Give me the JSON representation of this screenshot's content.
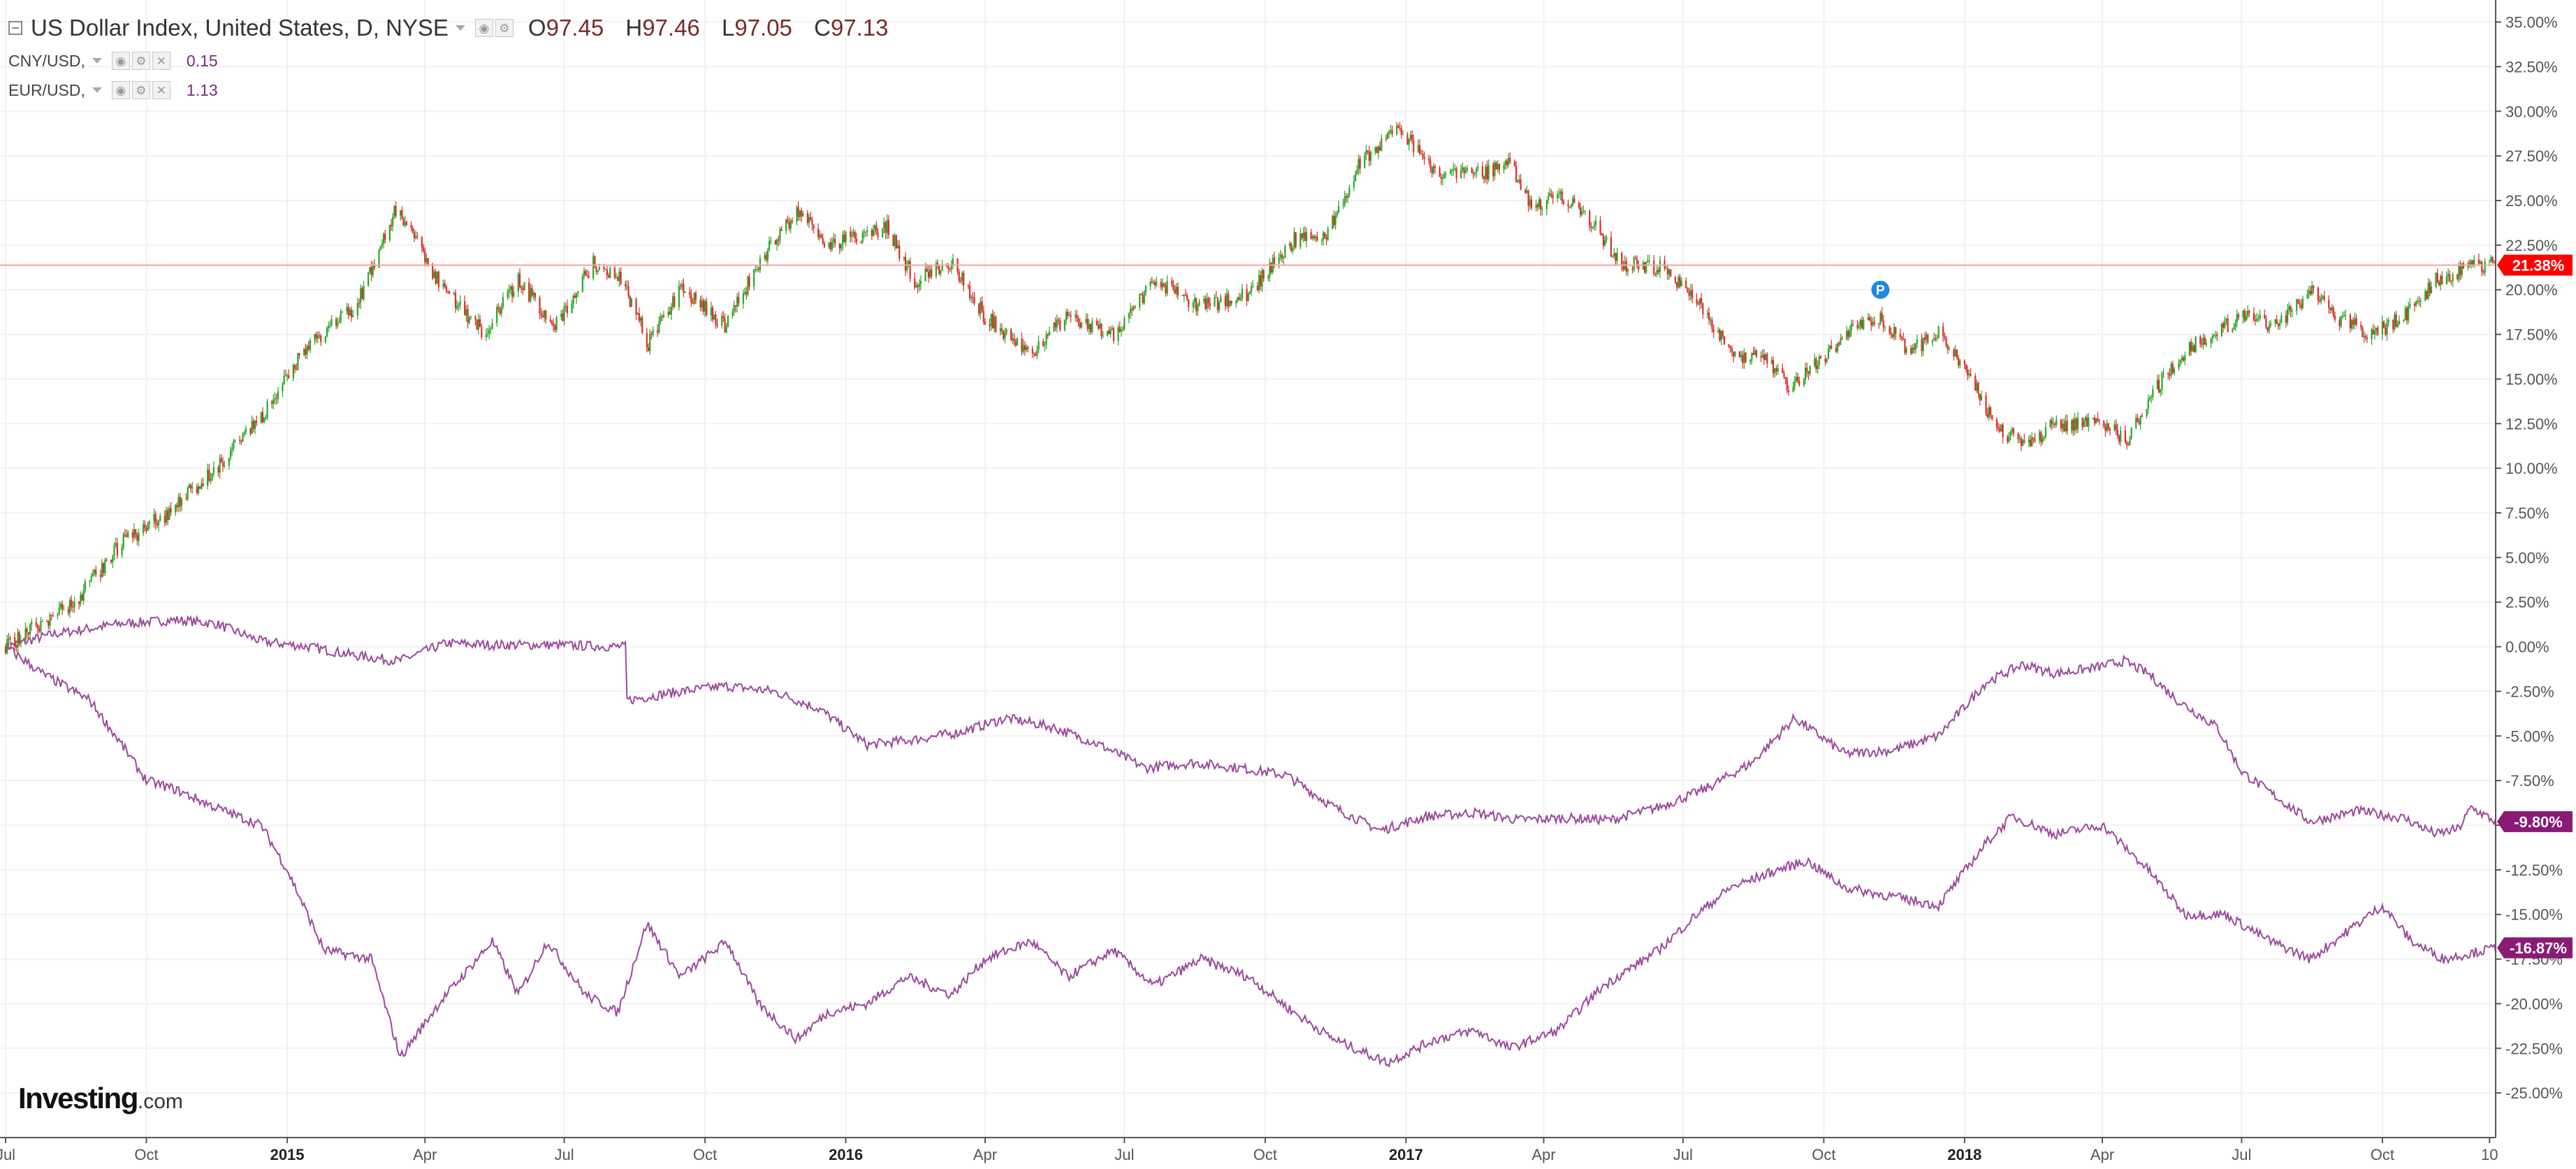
{
  "header": {
    "main_title": "US Dollar Index, United States, D, NYSE",
    "ohlc": [
      {
        "k": "O",
        "v": "97.45"
      },
      {
        "k": "H",
        "v": "97.46"
      },
      {
        "k": "L",
        "v": "97.05"
      },
      {
        "k": "C",
        "v": "97.13"
      }
    ],
    "comparisons": [
      {
        "label": "CNY/USD,",
        "value": "0.15"
      },
      {
        "label": "EUR/USD,",
        "value": "1.13"
      }
    ]
  },
  "logo": {
    "brand": "Investing",
    "suffix": ".com"
  },
  "colors": {
    "up": "#26a826",
    "down": "#e02b2b",
    "compare_line": "#9b4a9d",
    "current_line": "#f4a3a3",
    "current_badge": "#ff0000",
    "compare_badge": "#8a1a74",
    "grid": "#f2f2f2",
    "marker": "#1e88e5"
  },
  "chart_data": {
    "type": "line",
    "style": "candlestick-main-with-comparison-lines",
    "y_unit": "%",
    "ylim": [
      -27.5,
      36
    ],
    "y_ticks": [
      "35.00%",
      "32.50%",
      "30.00%",
      "27.50%",
      "25.00%",
      "22.50%",
      "20.00%",
      "17.50%",
      "15.00%",
      "12.50%",
      "10.00%",
      "7.50%",
      "5.00%",
      "2.50%",
      "0.00%",
      "-2.50%",
      "-5.00%",
      "-7.50%",
      "-10.00%",
      "-12.50%",
      "-15.00%",
      "-17.50%",
      "-20.00%",
      "-22.50%",
      "-25.00%"
    ],
    "x_ticks": [
      {
        "label": "Jul",
        "date": "2014-07-01",
        "bold": false
      },
      {
        "label": "Oct",
        "date": "2014-10-01",
        "bold": false
      },
      {
        "label": "2015",
        "date": "2015-01-01",
        "bold": true
      },
      {
        "label": "Apr",
        "date": "2015-04-01",
        "bold": false
      },
      {
        "label": "Jul",
        "date": "2015-07-01",
        "bold": false
      },
      {
        "label": "Oct",
        "date": "2015-10-01",
        "bold": false
      },
      {
        "label": "2016",
        "date": "2016-01-01",
        "bold": true
      },
      {
        "label": "Apr",
        "date": "2016-04-01",
        "bold": false
      },
      {
        "label": "Jul",
        "date": "2016-07-01",
        "bold": false
      },
      {
        "label": "Oct",
        "date": "2016-10-01",
        "bold": false
      },
      {
        "label": "2017",
        "date": "2017-01-01",
        "bold": true
      },
      {
        "label": "Apr",
        "date": "2017-04-01",
        "bold": false
      },
      {
        "label": "Jul",
        "date": "2017-07-01",
        "bold": false
      },
      {
        "label": "Oct",
        "date": "2017-10-01",
        "bold": false
      },
      {
        "label": "2018",
        "date": "2018-01-01",
        "bold": true
      },
      {
        "label": "Apr",
        "date": "2018-04-01",
        "bold": false
      },
      {
        "label": "Jul",
        "date": "2018-07-01",
        "bold": false
      },
      {
        "label": "Oct",
        "date": "2018-10-01",
        "bold": false
      },
      {
        "label": "10",
        "date": "2018-12-10",
        "bold": false
      }
    ],
    "x_range": [
      "2014-07-01",
      "2018-12-14"
    ],
    "current_value": {
      "value": 21.38,
      "label": "21.38%"
    },
    "series": [
      {
        "kind": "candlestick",
        "points": [
          [
            "2014-07-01",
            0.0
          ],
          [
            "2014-08-15",
            2.5
          ],
          [
            "2014-09-15",
            5.8
          ],
          [
            "2014-10-15",
            7.5
          ],
          [
            "2014-11-15",
            10.0
          ],
          [
            "2014-12-15",
            12.8
          ],
          [
            "2015-01-15",
            17.0
          ],
          [
            "2015-02-15",
            19.0
          ],
          [
            "2015-03-13",
            24.5
          ],
          [
            "2015-04-10",
            20.5
          ],
          [
            "2015-05-10",
            17.5
          ],
          [
            "2015-06-01",
            20.5
          ],
          [
            "2015-06-25",
            18.0
          ],
          [
            "2015-07-20",
            21.5
          ],
          [
            "2015-08-08",
            20.5
          ],
          [
            "2015-08-25",
            17.0
          ],
          [
            "2015-09-15",
            20.0
          ],
          [
            "2015-10-15",
            18.0
          ],
          [
            "2015-11-05",
            21.5
          ],
          [
            "2015-12-01",
            24.5
          ],
          [
            "2015-12-20",
            22.5
          ],
          [
            "2016-01-28",
            23.5
          ],
          [
            "2016-02-15",
            20.5
          ],
          [
            "2016-03-10",
            21.5
          ],
          [
            "2016-04-01",
            18.5
          ],
          [
            "2016-05-01",
            16.5
          ],
          [
            "2016-05-25",
            18.5
          ],
          [
            "2016-06-24",
            17.5
          ],
          [
            "2016-07-20",
            20.5
          ],
          [
            "2016-08-20",
            19.0
          ],
          [
            "2016-09-20",
            19.8
          ],
          [
            "2016-10-20",
            22.8
          ],
          [
            "2016-11-10",
            23.0
          ],
          [
            "2016-12-01",
            27.0
          ],
          [
            "2016-12-28",
            29.0
          ],
          [
            "2017-01-20",
            26.5
          ],
          [
            "2017-02-20",
            26.5
          ],
          [
            "2017-03-10",
            27.0
          ],
          [
            "2017-03-25",
            24.5
          ],
          [
            "2017-04-10",
            25.5
          ],
          [
            "2017-05-01",
            24.0
          ],
          [
            "2017-05-20",
            21.5
          ],
          [
            "2017-06-15",
            21.3
          ],
          [
            "2017-07-10",
            19.5
          ],
          [
            "2017-08-01",
            16.5
          ],
          [
            "2017-08-25",
            16.0
          ],
          [
            "2017-09-08",
            14.5
          ],
          [
            "2017-10-01",
            16.2
          ],
          [
            "2017-10-20",
            17.8
          ],
          [
            "2017-11-07",
            18.5
          ],
          [
            "2017-11-25",
            16.5
          ],
          [
            "2017-12-15",
            17.5
          ],
          [
            "2018-01-01",
            15.5
          ],
          [
            "2018-01-25",
            12.0
          ],
          [
            "2018-02-15",
            11.5
          ],
          [
            "2018-03-01",
            12.5
          ],
          [
            "2018-04-05",
            12.5
          ],
          [
            "2018-04-17",
            11.5
          ],
          [
            "2018-05-10",
            15.0
          ],
          [
            "2018-06-01",
            17.0
          ],
          [
            "2018-07-01",
            18.5
          ],
          [
            "2018-07-25",
            18.0
          ],
          [
            "2018-08-15",
            20.0
          ],
          [
            "2018-09-01",
            18.5
          ],
          [
            "2018-09-25",
            17.5
          ],
          [
            "2018-10-15",
            18.5
          ],
          [
            "2018-11-05",
            20.5
          ],
          [
            "2018-11-20",
            21.0
          ],
          [
            "2018-12-10",
            21.5
          ],
          [
            "2018-12-14",
            21.38
          ]
        ]
      },
      {
        "kind": "line",
        "value_label": "-9.80%",
        "points": [
          [
            "2014-07-01",
            0.0
          ],
          [
            "2014-08-01",
            0.7
          ],
          [
            "2014-09-15",
            1.3
          ],
          [
            "2014-10-20",
            1.5
          ],
          [
            "2014-11-15",
            1.3
          ],
          [
            "2014-12-15",
            0.3
          ],
          [
            "2015-01-15",
            0.0
          ],
          [
            "2015-02-15",
            -0.5
          ],
          [
            "2015-03-15",
            -0.8
          ],
          [
            "2015-04-15",
            0.2
          ],
          [
            "2015-05-15",
            0.1
          ],
          [
            "2015-06-20",
            0.1
          ],
          [
            "2015-08-10",
            0.0
          ],
          [
            "2015-08-11",
            -3.0
          ],
          [
            "2015-09-15",
            -2.5
          ],
          [
            "2015-10-15",
            -2.2
          ],
          [
            "2015-11-15",
            -2.5
          ],
          [
            "2015-12-15",
            -3.5
          ],
          [
            "2016-01-15",
            -5.5
          ],
          [
            "2016-02-15",
            -5.2
          ],
          [
            "2016-03-15",
            -4.8
          ],
          [
            "2016-04-15",
            -4.0
          ],
          [
            "2016-05-15",
            -4.5
          ],
          [
            "2016-06-15",
            -5.5
          ],
          [
            "2016-07-15",
            -6.8
          ],
          [
            "2016-08-15",
            -6.5
          ],
          [
            "2016-09-15",
            -6.8
          ],
          [
            "2016-10-15",
            -7.2
          ],
          [
            "2016-11-15",
            -9.0
          ],
          [
            "2016-12-15",
            -10.3
          ],
          [
            "2017-01-15",
            -9.5
          ],
          [
            "2017-02-15",
            -9.3
          ],
          [
            "2017-03-15",
            -9.7
          ],
          [
            "2017-04-15",
            -9.6
          ],
          [
            "2017-05-15",
            -9.7
          ],
          [
            "2017-06-15",
            -9.0
          ],
          [
            "2017-07-15",
            -8.0
          ],
          [
            "2017-08-15",
            -6.5
          ],
          [
            "2017-09-12",
            -4.0
          ],
          [
            "2017-10-15",
            -6.0
          ],
          [
            "2017-11-15",
            -5.8
          ],
          [
            "2017-12-15",
            -5.0
          ],
          [
            "2018-01-15",
            -2.0
          ],
          [
            "2018-02-08",
            -1.0
          ],
          [
            "2018-03-01",
            -1.5
          ],
          [
            "2018-03-26",
            -1.2
          ],
          [
            "2018-04-15",
            -0.8
          ],
          [
            "2018-05-01",
            -1.5
          ],
          [
            "2018-05-20",
            -3.0
          ],
          [
            "2018-06-15",
            -4.5
          ],
          [
            "2018-07-01",
            -7.0
          ],
          [
            "2018-07-25",
            -8.5
          ],
          [
            "2018-08-15",
            -9.8
          ],
          [
            "2018-09-15",
            -9.2
          ],
          [
            "2018-10-15",
            -9.6
          ],
          [
            "2018-11-05",
            -10.5
          ],
          [
            "2018-11-20",
            -10.2
          ],
          [
            "2018-11-28",
            -9.0
          ],
          [
            "2018-12-14",
            -9.8
          ]
        ]
      },
      {
        "kind": "line",
        "value_label": "-16.87%",
        "points": [
          [
            "2014-07-01",
            0.0
          ],
          [
            "2014-07-25",
            -1.5
          ],
          [
            "2014-08-25",
            -3.0
          ],
          [
            "2014-09-15",
            -5.5
          ],
          [
            "2014-10-01",
            -7.5
          ],
          [
            "2014-10-20",
            -8.0
          ],
          [
            "2014-11-15",
            -9.0
          ],
          [
            "2014-12-15",
            -10.0
          ],
          [
            "2015-01-01",
            -12.5
          ],
          [
            "2015-01-25",
            -17.0
          ],
          [
            "2015-02-25",
            -17.5
          ],
          [
            "2015-03-16",
            -23.0
          ],
          [
            "2015-04-10",
            -20.0
          ],
          [
            "2015-05-15",
            -16.5
          ],
          [
            "2015-06-01",
            -19.5
          ],
          [
            "2015-06-20",
            -16.5
          ],
          [
            "2015-07-15",
            -19.5
          ],
          [
            "2015-08-05",
            -20.5
          ],
          [
            "2015-08-24",
            -15.5
          ],
          [
            "2015-09-15",
            -18.5
          ],
          [
            "2015-10-15",
            -16.5
          ],
          [
            "2015-11-05",
            -20.0
          ],
          [
            "2015-11-30",
            -22.0
          ],
          [
            "2015-12-20",
            -20.5
          ],
          [
            "2016-01-15",
            -20.0
          ],
          [
            "2016-02-10",
            -18.5
          ],
          [
            "2016-03-10",
            -19.5
          ],
          [
            "2016-04-01",
            -17.5
          ],
          [
            "2016-05-01",
            -16.5
          ],
          [
            "2016-05-25",
            -18.5
          ],
          [
            "2016-06-24",
            -17.0
          ],
          [
            "2016-07-20",
            -19.0
          ],
          [
            "2016-08-20",
            -17.5
          ],
          [
            "2016-09-20",
            -18.5
          ],
          [
            "2016-10-20",
            -20.5
          ],
          [
            "2016-11-15",
            -22.0
          ],
          [
            "2016-12-20",
            -23.3
          ],
          [
            "2017-01-20",
            -22.0
          ],
          [
            "2017-02-15",
            -21.5
          ],
          [
            "2017-03-10",
            -22.5
          ],
          [
            "2017-04-10",
            -21.5
          ],
          [
            "2017-05-10",
            -19.0
          ],
          [
            "2017-06-15",
            -17.0
          ],
          [
            "2017-07-10",
            -15.0
          ],
          [
            "2017-08-01",
            -13.5
          ],
          [
            "2017-09-01",
            -12.5
          ],
          [
            "2017-09-20",
            -12.0
          ],
          [
            "2017-10-15",
            -13.5
          ],
          [
            "2017-11-15",
            -14.0
          ],
          [
            "2017-12-15",
            -14.5
          ],
          [
            "2018-01-15",
            -11.0
          ],
          [
            "2018-02-01",
            -9.5
          ],
          [
            "2018-02-15",
            -10.0
          ],
          [
            "2018-03-01",
            -10.5
          ],
          [
            "2018-04-01",
            -10.0
          ],
          [
            "2018-05-01",
            -12.5
          ],
          [
            "2018-05-25",
            -15.0
          ],
          [
            "2018-06-20",
            -15.0
          ],
          [
            "2018-07-20",
            -16.5
          ],
          [
            "2018-08-15",
            -17.5
          ],
          [
            "2018-09-15",
            -15.5
          ],
          [
            "2018-10-01",
            -14.5
          ],
          [
            "2018-10-20",
            -16.5
          ],
          [
            "2018-11-10",
            -17.5
          ],
          [
            "2018-12-14",
            -16.87
          ]
        ]
      }
    ]
  }
}
